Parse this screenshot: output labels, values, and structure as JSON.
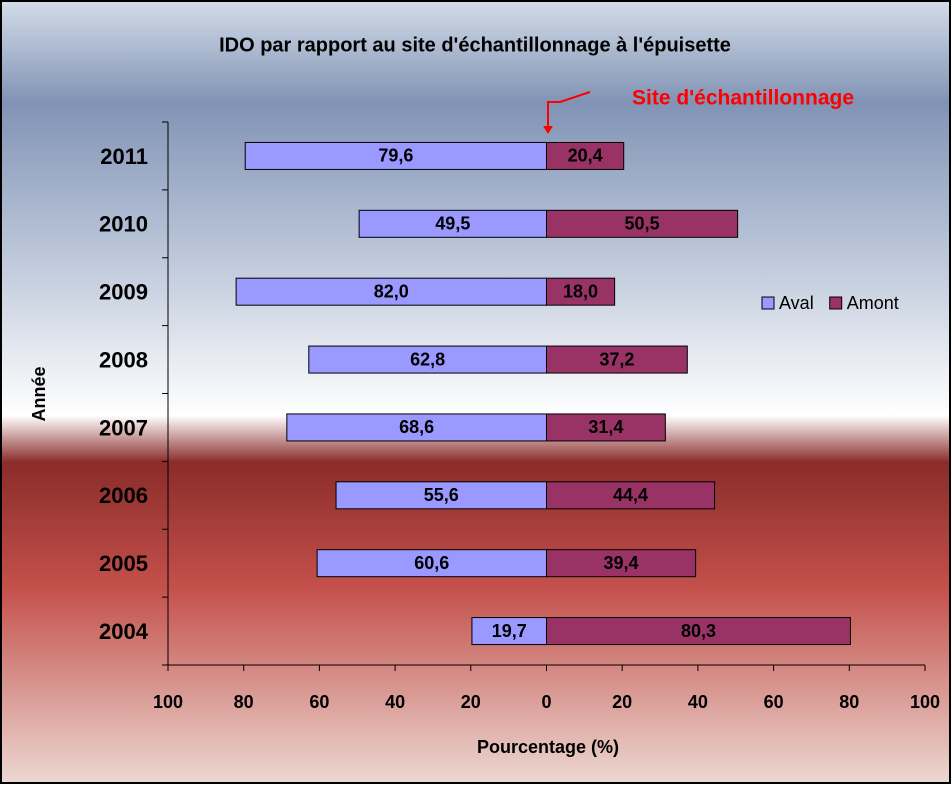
{
  "chart_data": {
    "type": "diverging-bar",
    "title": "IDO par rapport au site d'échantillonnage à l'épuisette",
    "annotation": "Site d'échantillonnage",
    "xlabel": "Pourcentage (%)",
    "ylabel": "Année",
    "categories": [
      "2011",
      "2010",
      "2009",
      "2008",
      "2007",
      "2006",
      "2005",
      "2004"
    ],
    "series": [
      {
        "name": "Aval",
        "color": "#9999ff",
        "values": [
          -79.6,
          -49.5,
          -82.0,
          -62.8,
          -68.6,
          -55.6,
          -60.6,
          -19.7
        ],
        "value_labels": [
          "79,6",
          "49,5",
          "82,0",
          "62,8",
          "68,6",
          "55,6",
          "60,6",
          "19,7"
        ]
      },
      {
        "name": "Amont",
        "color": "#993366",
        "values": [
          20.4,
          50.5,
          18.0,
          37.2,
          31.4,
          44.4,
          39.4,
          80.3
        ],
        "value_labels": [
          "20,4",
          "50,5",
          "18,0",
          "37,2",
          "31,4",
          "44,4",
          "39,4",
          "80,3"
        ]
      }
    ],
    "xlim": [
      -100,
      100
    ],
    "xticks": [
      {
        "value": -100,
        "label": "100"
      },
      {
        "value": -80,
        "label": "80"
      },
      {
        "value": -60,
        "label": "60"
      },
      {
        "value": -40,
        "label": "40"
      },
      {
        "value": -20,
        "label": "20"
      },
      0,
      20,
      40,
      60,
      80,
      100
    ],
    "grid": false,
    "legend": "right"
  }
}
